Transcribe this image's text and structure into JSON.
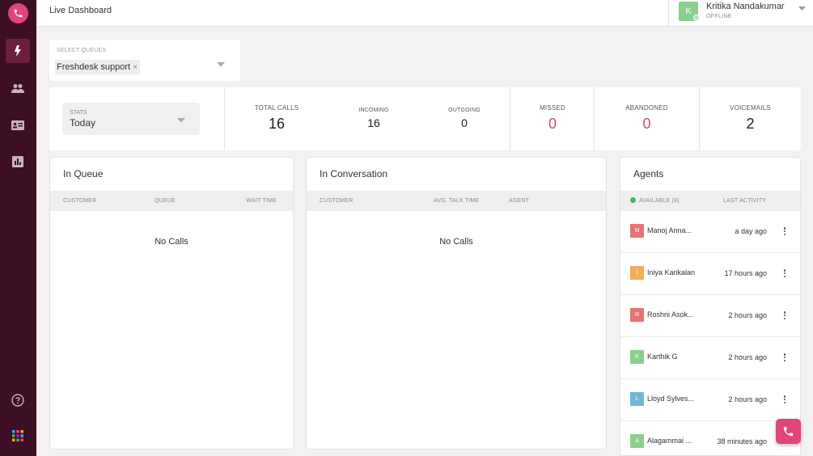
{
  "colors": {
    "sidebar": "#3d0f24",
    "accent": "#e0457b",
    "pink_value": "#d2457b",
    "available": "#4caf50"
  },
  "sidebar": {
    "logo_icon": "phone-icon",
    "items": [
      {
        "icon": "lightning-icon",
        "active": true
      },
      {
        "icon": "people-icon",
        "active": false
      },
      {
        "icon": "contact-card-icon",
        "active": false
      },
      {
        "icon": "bar-chart-icon",
        "active": false
      }
    ],
    "bottom": [
      {
        "icon": "help-icon"
      },
      {
        "icon": "app-grid-icon"
      }
    ]
  },
  "header": {
    "title": "Live Dashboard",
    "user": {
      "initial": "K",
      "name": "Kritika Nandakumar",
      "status": "OFFLINE"
    }
  },
  "queue_selector": {
    "label": "SELECT QUEUES",
    "selected": "Freshdesk support"
  },
  "stats": {
    "filter_label": "STATS",
    "filter_value": "Today",
    "items": [
      {
        "label": "TOTAL CALLS",
        "value": "16"
      },
      {
        "label": "INCOMING",
        "value": "16"
      },
      {
        "label": "OUTGOING",
        "value": "0"
      },
      {
        "label": "MISSED",
        "value": "0"
      },
      {
        "label": "ABANDONED",
        "value": "0"
      },
      {
        "label": "VOICEMAILS",
        "value": "2"
      }
    ]
  },
  "in_queue": {
    "title": "In Queue",
    "columns": [
      "CUSTOMER",
      "QUEUE",
      "WAIT TIME"
    ],
    "empty": "No Calls"
  },
  "in_conversation": {
    "title": "In Conversation",
    "columns": [
      "CUSTOMER",
      "AVG. TALK TIME",
      "AGENT"
    ],
    "empty": "No Calls"
  },
  "agents": {
    "title": "Agents",
    "available_label": "AVAILABLE (8)",
    "last_activity_label": "LAST ACTIVITY",
    "list": [
      {
        "initial": "M",
        "name": "Manoj Anna...",
        "time": "a day ago",
        "color": "#e57373"
      },
      {
        "initial": "I",
        "name": "Iniya Karikalan",
        "time": "17 hours ago",
        "color": "#f0ad5a"
      },
      {
        "initial": "R",
        "name": "Roshni Asok...",
        "time": "2 hours ago",
        "color": "#e57373"
      },
      {
        "initial": "K",
        "name": "Karthik G",
        "time": "2 hours ago",
        "color": "#8bcf8d"
      },
      {
        "initial": "L",
        "name": "Lloyd Sylves...",
        "time": "2 hours ago",
        "color": "#6fb8d8"
      },
      {
        "initial": "A",
        "name": "Alagammai ...",
        "time": "38 minutes ago",
        "color": "#8bcf8d"
      }
    ]
  },
  "fab_icon": "phone-icon"
}
